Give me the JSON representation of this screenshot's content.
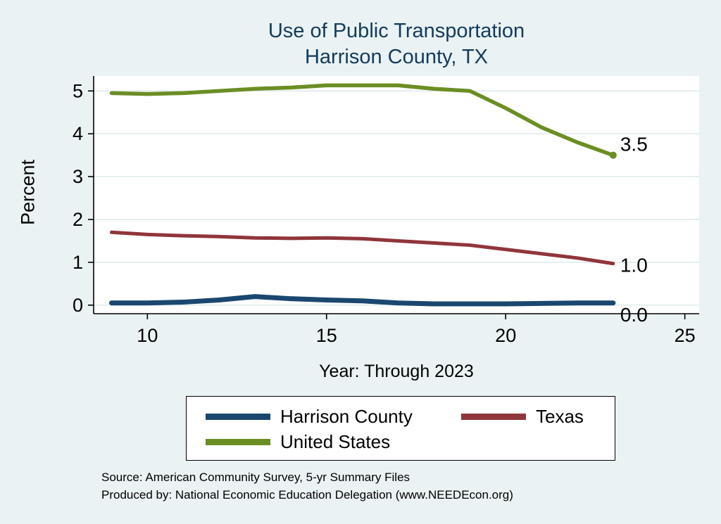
{
  "page": {
    "background": "#eaf2f3"
  },
  "chart_data": {
    "type": "line",
    "title": "Use of Public Transportation",
    "subtitle": "Harrison County, TX",
    "title_color": "#133b5c",
    "ylabel": "Percent",
    "xlabel": "Year: Through 2023",
    "x": [
      9,
      10,
      11,
      12,
      13,
      14,
      15,
      16,
      17,
      18,
      19,
      20,
      21,
      22,
      23
    ],
    "series": [
      {
        "name": "Harrison County",
        "color": "#1a476f",
        "values": [
          0.05,
          0.05,
          0.07,
          0.12,
          0.2,
          0.15,
          0.12,
          0.1,
          0.05,
          0.03,
          0.03,
          0.03,
          0.04,
          0.05,
          0.05
        ],
        "end_label": "0.0",
        "end_marker": false
      },
      {
        "name": "Texas",
        "color": "#90353b",
        "values": [
          1.7,
          1.65,
          1.62,
          1.6,
          1.57,
          1.56,
          1.57,
          1.55,
          1.5,
          1.45,
          1.4,
          1.3,
          1.2,
          1.1,
          0.97
        ],
        "end_label": "1.0",
        "end_marker": false
      },
      {
        "name": "United States",
        "color": "#6b8e23",
        "values": [
          4.95,
          4.93,
          4.95,
          5.0,
          5.05,
          5.08,
          5.13,
          5.13,
          5.13,
          5.05,
          5.0,
          4.6,
          4.15,
          3.8,
          3.5
        ],
        "end_label": "3.5",
        "end_marker": true
      }
    ],
    "xlim": [
      8.5,
      25.4
    ],
    "ylim": [
      -0.2,
      5.35
    ],
    "xticks": [
      10,
      15,
      20,
      25
    ],
    "yticks": [
      0,
      1,
      2,
      3,
      4,
      5
    ],
    "grid": true,
    "grid_color": "#dbe8ea",
    "legend_position": "bottom"
  },
  "footer": {
    "source_line": "Source: American Community Survey, 5-yr Summary Files",
    "produced_line": "Produced by: National Economic Education Delegation (www.NEEDEcon.org)"
  }
}
